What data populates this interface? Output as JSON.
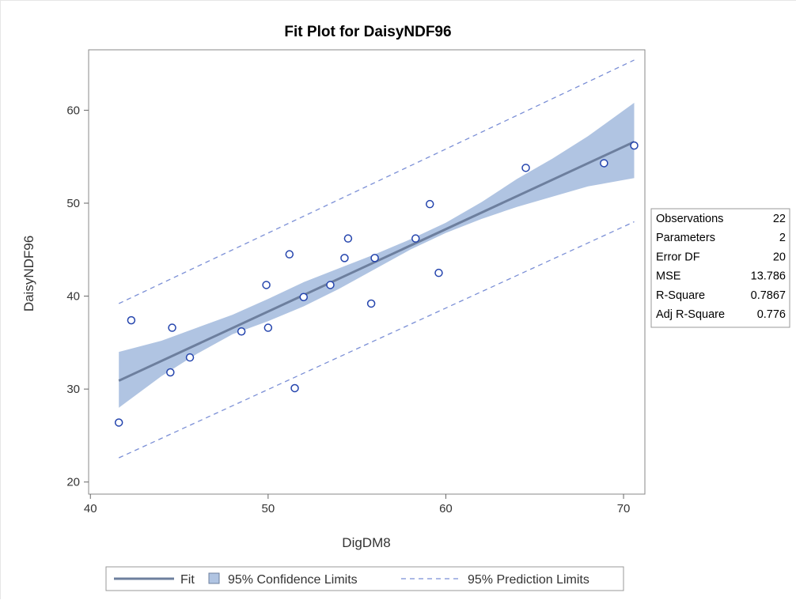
{
  "chart_data": {
    "type": "scatter",
    "title": "Fit Plot for DaisyNDF96",
    "xlabel": "DigDM8",
    "ylabel": "DaisyNDF96",
    "xlim": [
      39.9,
      71.2
    ],
    "ylim": [
      18.7,
      66.5
    ],
    "x_ticks": [
      40,
      50,
      60,
      70
    ],
    "y_ticks": [
      20,
      30,
      40,
      50,
      60
    ],
    "grid": false,
    "points": [
      {
        "x": 41.6,
        "y": 26.4
      },
      {
        "x": 42.3,
        "y": 37.4
      },
      {
        "x": 44.5,
        "y": 31.8
      },
      {
        "x": 44.6,
        "y": 36.6
      },
      {
        "x": 45.6,
        "y": 33.4
      },
      {
        "x": 48.5,
        "y": 36.2
      },
      {
        "x": 49.9,
        "y": 41.2
      },
      {
        "x": 50.0,
        "y": 36.6
      },
      {
        "x": 51.2,
        "y": 44.5
      },
      {
        "x": 51.5,
        "y": 30.1
      },
      {
        "x": 52.0,
        "y": 39.9
      },
      {
        "x": 53.5,
        "y": 41.2
      },
      {
        "x": 54.3,
        "y": 44.1
      },
      {
        "x": 54.5,
        "y": 46.2
      },
      {
        "x": 55.8,
        "y": 39.2
      },
      {
        "x": 56.0,
        "y": 44.1
      },
      {
        "x": 58.3,
        "y": 46.2
      },
      {
        "x": 59.1,
        "y": 49.9
      },
      {
        "x": 59.6,
        "y": 42.5
      },
      {
        "x": 64.5,
        "y": 53.8
      },
      {
        "x": 68.9,
        "y": 54.3
      },
      {
        "x": 70.6,
        "y": 56.2
      }
    ],
    "fit": {
      "x": [
        41.6,
        70.6
      ],
      "y": [
        30.9,
        56.6
      ]
    },
    "confidence_band": {
      "x": [
        41.6,
        44.0,
        46.0,
        48.0,
        50.0,
        52.0,
        54.0,
        56.0,
        58.0,
        60.0,
        62.0,
        64.0,
        66.0,
        68.0,
        70.6
      ],
      "lower": [
        28.0,
        31.4,
        33.8,
        35.9,
        37.3,
        38.9,
        40.8,
        42.9,
        45.0,
        46.8,
        48.3,
        49.6,
        50.7,
        51.8,
        52.7
      ],
      "upper": [
        34.0,
        35.2,
        36.6,
        38.0,
        39.7,
        41.5,
        43.0,
        44.5,
        46.1,
        47.9,
        50.1,
        52.6,
        54.8,
        57.2,
        60.8
      ]
    },
    "prediction_limits": {
      "x": [
        41.6,
        70.6
      ],
      "lower": [
        22.6,
        48.0
      ],
      "upper": [
        39.2,
        65.4
      ]
    },
    "colors": {
      "fit": "#6d7f9e",
      "band": "#b0c4e2",
      "prediction": "#7b8fd6",
      "marker": "#2444ad"
    },
    "stats_table": [
      {
        "label": "Observations",
        "value": "22"
      },
      {
        "label": "Parameters",
        "value": "2"
      },
      {
        "label": "Error DF",
        "value": "20"
      },
      {
        "label": "MSE",
        "value": "13.786"
      },
      {
        "label": "R-Square",
        "value": "0.7867"
      },
      {
        "label": "Adj R-Square",
        "value": "0.776"
      }
    ],
    "legend": {
      "placement": "bottom",
      "entries": [
        {
          "label": "Fit",
          "symbol": "line"
        },
        {
          "label": "95% Confidence Limits",
          "symbol": "band"
        },
        {
          "label": "95% Prediction Limits",
          "symbol": "dashed"
        }
      ]
    }
  }
}
